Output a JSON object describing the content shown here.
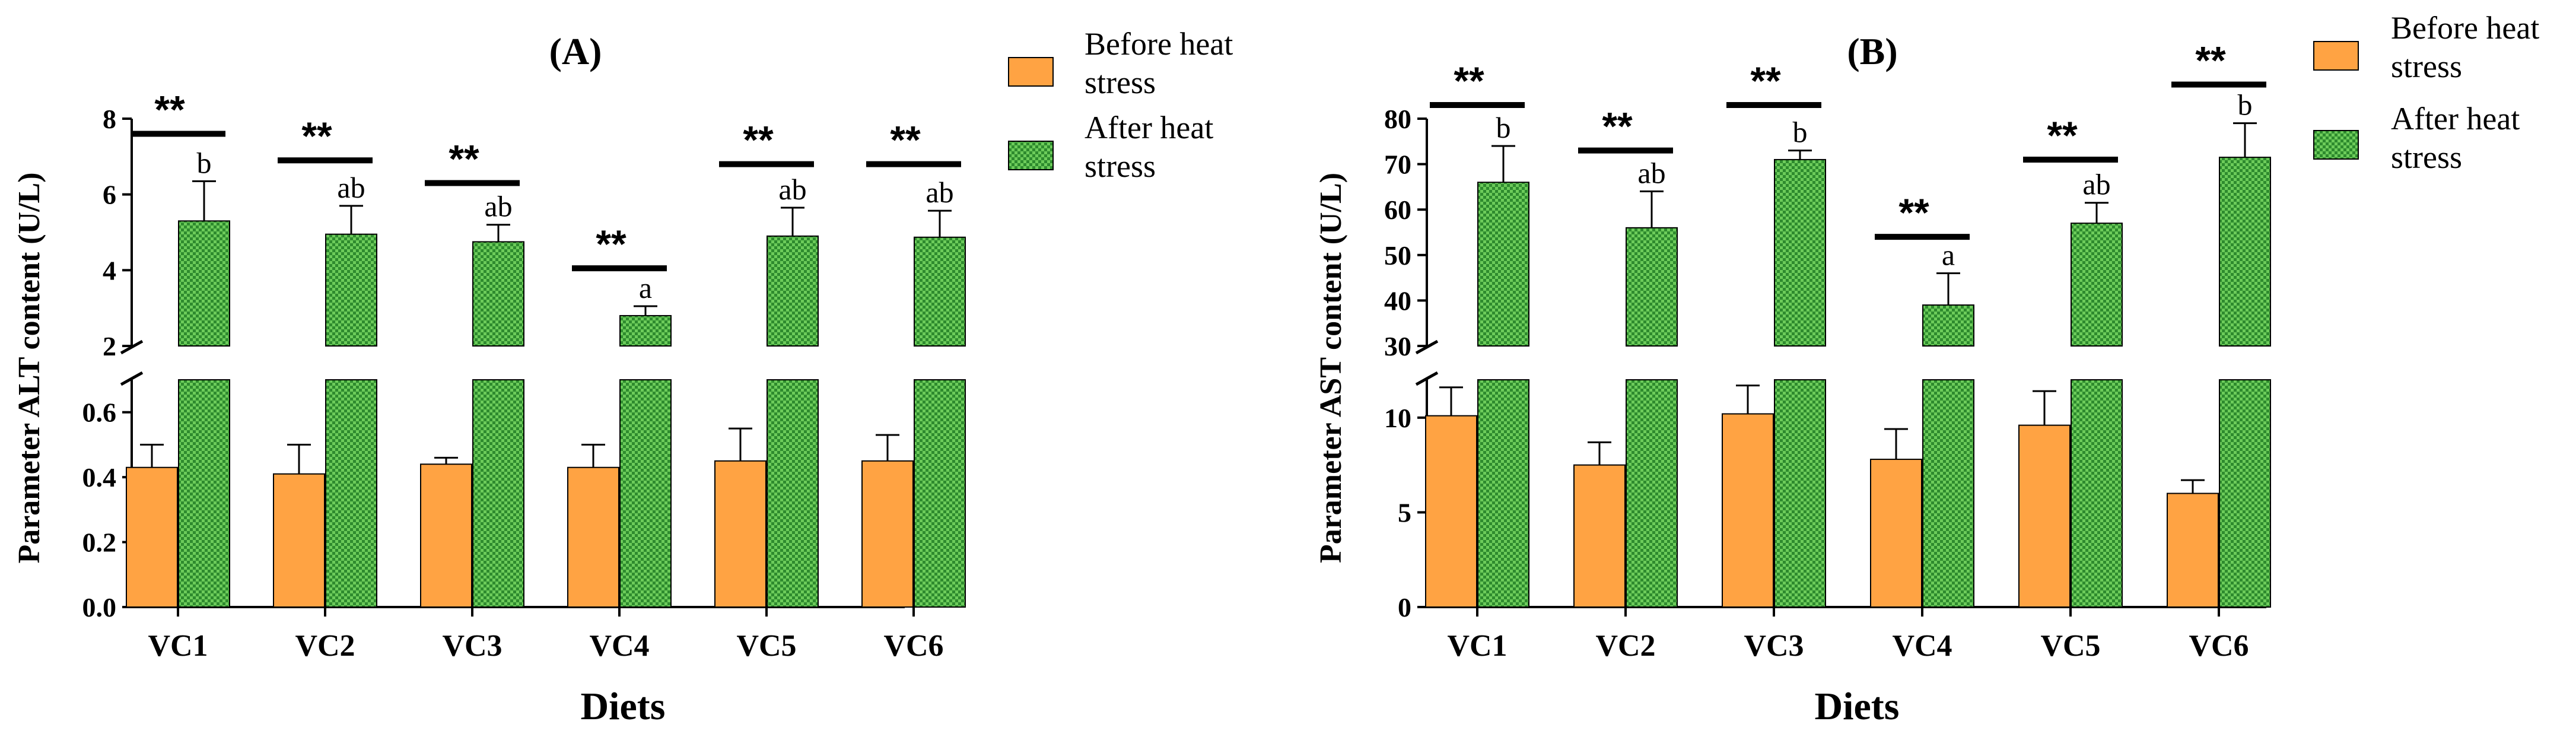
{
  "colors": {
    "before": "#FFA343",
    "after": "#6CCB5A",
    "after_pattern": "#2E8B2E",
    "axis": "#000000"
  },
  "legend": {
    "before": "Before heat stress",
    "after": "After heat stress",
    "before_lines": [
      "Before heat",
      "stress"
    ],
    "after_lines": [
      "After heat",
      "stress"
    ]
  },
  "chart_data": [
    {
      "id": "A",
      "type": "bar",
      "title": "(A)",
      "xlabel": "Diets",
      "ylabel": "Parameter ALT content (U/L)",
      "categories": [
        "VC1",
        "VC2",
        "VC3",
        "VC4",
        "VC5",
        "VC6"
      ],
      "axis_break": {
        "lower": [
          0,
          0.7
        ],
        "upper": [
          2,
          8
        ]
      },
      "lower_ticks": [
        "0.0",
        "0.2",
        "0.4",
        "0.6"
      ],
      "lower_tick_values": [
        0,
        0.2,
        0.4,
        0.6
      ],
      "upper_ticks": [
        "2",
        "4",
        "6",
        "8"
      ],
      "upper_tick_values": [
        2,
        4,
        6,
        8
      ],
      "series": [
        {
          "name": "Before heat stress",
          "values": [
            0.43,
            0.41,
            0.44,
            0.43,
            0.45,
            0.45
          ],
          "errors": [
            0.07,
            0.09,
            0.02,
            0.07,
            0.1,
            0.08
          ]
        },
        {
          "name": "After heat stress",
          "values": [
            5.3,
            4.95,
            4.75,
            2.8,
            4.9,
            4.87
          ],
          "errors": [
            1.05,
            0.75,
            0.45,
            0.25,
            0.75,
            0.7
          ]
        }
      ],
      "letters": [
        "b",
        "ab",
        "ab",
        "a",
        "ab",
        "ab"
      ],
      "significance": [
        "**",
        "**",
        "**",
        "**",
        "**",
        "**"
      ],
      "sig_levels": [
        7.6,
        6.9,
        6.3,
        4.05,
        6.8,
        6.8
      ]
    },
    {
      "id": "B",
      "type": "bar",
      "title": "(B)",
      "xlabel": "Diets",
      "ylabel": "Parameter AST content (U/L)",
      "categories": [
        "VC1",
        "VC2",
        "VC3",
        "VC4",
        "VC5",
        "VC6"
      ],
      "axis_break": {
        "lower": [
          0,
          12
        ],
        "upper": [
          30,
          80
        ]
      },
      "lower_ticks": [
        "0",
        "5",
        "10"
      ],
      "lower_tick_values": [
        0,
        5,
        10
      ],
      "upper_ticks": [
        "30",
        "40",
        "50",
        "60",
        "70",
        "80"
      ],
      "upper_tick_values": [
        30,
        40,
        50,
        60,
        70,
        80
      ],
      "series": [
        {
          "name": "Before heat stress",
          "values": [
            10.1,
            7.5,
            10.2,
            7.8,
            9.6,
            6.0
          ],
          "errors": [
            1.5,
            1.2,
            1.5,
            1.6,
            1.8,
            0.7
          ]
        },
        {
          "name": "After heat stress",
          "values": [
            66,
            56,
            71,
            39,
            57,
            71.5
          ],
          "errors": [
            8,
            8,
            2,
            7,
            4.5,
            7.5
          ]
        }
      ],
      "letters": [
        "b",
        "ab",
        "b",
        "a",
        "ab",
        "b"
      ],
      "significance": [
        "**",
        "**",
        "**",
        "**",
        "**",
        "**"
      ],
      "sig_levels": [
        83,
        73,
        83,
        54,
        71,
        87.5
      ]
    }
  ]
}
